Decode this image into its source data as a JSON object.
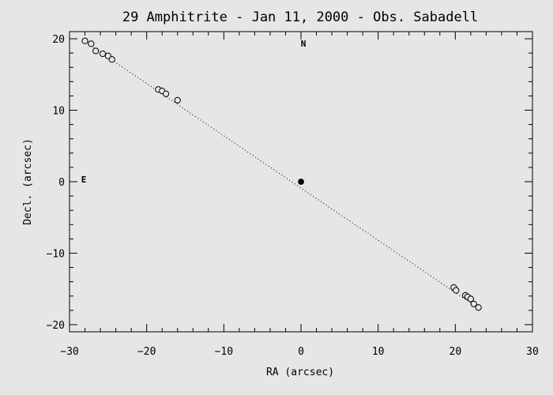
{
  "chart_data": {
    "type": "scatter",
    "title": "29 Amphitrite - Jan 11, 2000 - Obs. Sabadell",
    "xlabel": "RA (arcsec)",
    "ylabel": "Decl. (arcsec)",
    "xlim": [
      -30,
      30
    ],
    "ylim": [
      -21,
      21
    ],
    "xticks": [
      -30,
      -20,
      -10,
      0,
      10,
      20,
      30
    ],
    "xtick_labels": [
      "−30",
      "−20",
      "−10",
      "0",
      "10",
      "20",
      "30"
    ],
    "yticks": [
      -20,
      -10,
      0,
      10,
      20
    ],
    "ytick_labels": [
      "−20",
      "−10",
      "0",
      "10",
      "20"
    ],
    "direction_labels": {
      "north": "N",
      "east": "E"
    },
    "reference_point": {
      "x": 0,
      "y": 0,
      "marker": "filled-circle"
    },
    "trajectory_line": {
      "x1": -28.3,
      "y1": 19.8,
      "x2": 23.0,
      "y2": -17.7,
      "style": "dotted"
    },
    "points": [
      {
        "x": -28.0,
        "y": 19.7
      },
      {
        "x": -27.2,
        "y": 19.3
      },
      {
        "x": -26.6,
        "y": 18.3
      },
      {
        "x": -25.7,
        "y": 17.9
      },
      {
        "x": -25.0,
        "y": 17.6
      },
      {
        "x": -24.5,
        "y": 17.1
      },
      {
        "x": -18.5,
        "y": 12.9
      },
      {
        "x": -18.0,
        "y": 12.7
      },
      {
        "x": -17.5,
        "y": 12.3
      },
      {
        "x": -16.0,
        "y": 11.4
      },
      {
        "x": 19.8,
        "y": -14.8
      },
      {
        "x": 20.1,
        "y": -15.2
      },
      {
        "x": 21.3,
        "y": -15.9
      },
      {
        "x": 21.6,
        "y": -16.1
      },
      {
        "x": 22.0,
        "y": -16.4
      },
      {
        "x": 22.4,
        "y": -17.1
      },
      {
        "x": 23.0,
        "y": -17.6
      }
    ]
  }
}
